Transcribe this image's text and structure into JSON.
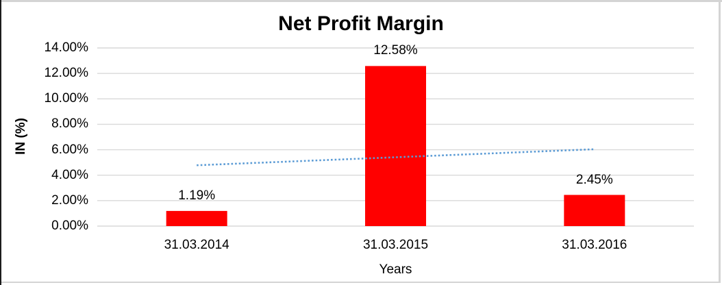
{
  "chart_data": {
    "type": "bar",
    "title": "Net Profit Margin",
    "xlabel": "Years",
    "ylabel": "IN (%)",
    "categories": [
      "31.03.2014",
      "31.03.2015",
      "31.03.2016"
    ],
    "series": [
      {
        "name": "Net Profit Margin",
        "values": [
          1.19,
          12.58,
          2.45
        ]
      }
    ],
    "data_labels": [
      "1.19%",
      "12.58%",
      "2.45%"
    ],
    "y_tick_labels": [
      "0.00%",
      "2.00%",
      "4.00%",
      "6.00%",
      "8.00%",
      "10.00%",
      "12.00%",
      "14.00%"
    ],
    "ylim": [
      0,
      14
    ],
    "y_tick_step": 2,
    "grid": true,
    "legend": false,
    "bar_color": "#FF0000",
    "gridline_color": "#D9D9D9",
    "text_color": "#000000",
    "trendline": {
      "type": "linear",
      "style": "dotted",
      "color": "#5B9BD5",
      "start_value": 4.78,
      "end_value": 6.04
    }
  }
}
